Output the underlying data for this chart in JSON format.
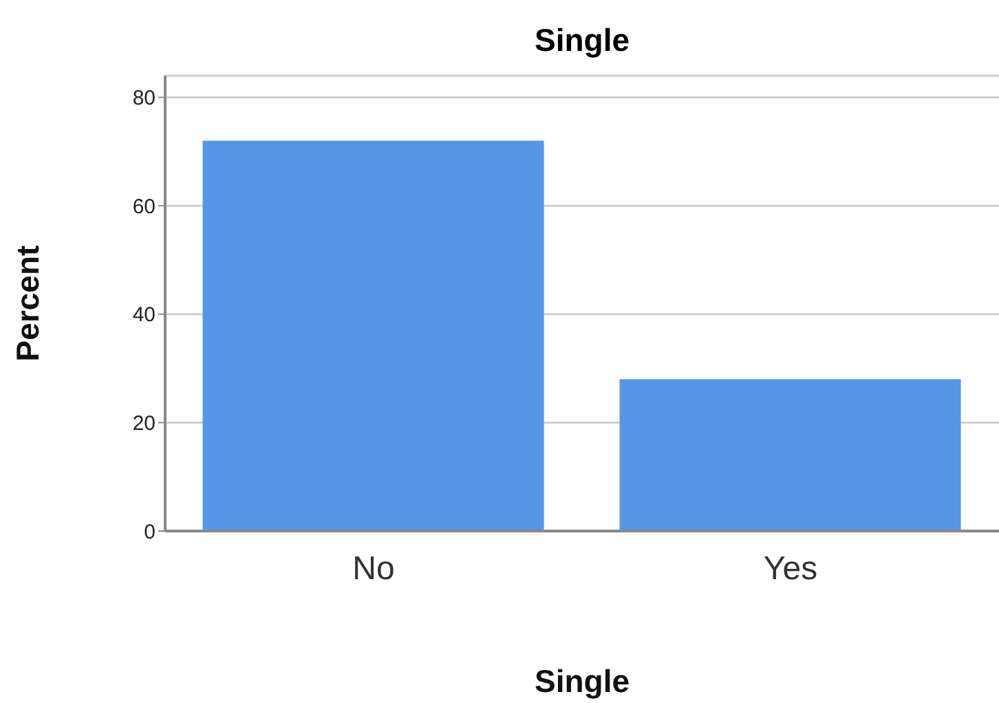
{
  "chart_data": {
    "type": "bar",
    "title": "Single",
    "xlabel": "Single",
    "ylabel": "Percent",
    "categories": [
      "No",
      "Yes"
    ],
    "values": [
      72,
      28
    ],
    "color": "#5596e6",
    "ylim": [
      0,
      84
    ],
    "yticks": [
      0,
      20,
      40,
      60,
      80
    ],
    "grid": "y"
  }
}
